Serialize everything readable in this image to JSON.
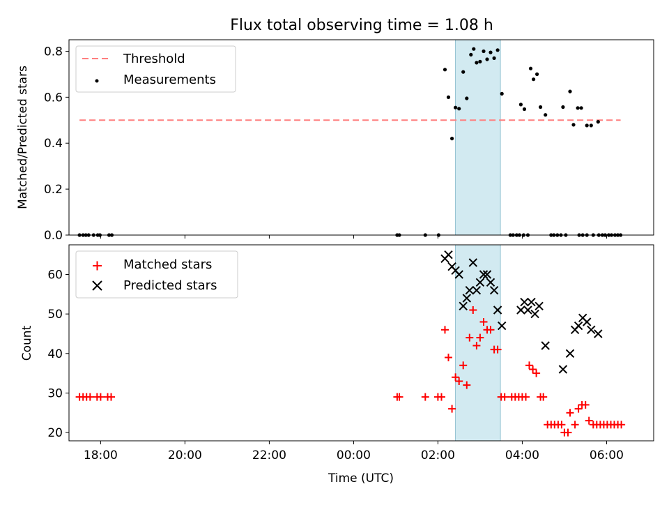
{
  "title": "Flux total observing time = 1.08 h",
  "colors": {
    "threshold": "#ff7f7f",
    "measurement": "#000000",
    "matched": "#ff0000",
    "predicted": "#000000",
    "span": "#add8e6"
  },
  "chart_data": [
    {
      "type": "scatter",
      "panel": "top",
      "ylabel": "Matched/Predicted stars",
      "xlabel": "",
      "xlim": [
        "17:15",
        "07:07"
      ],
      "ylim": [
        0,
        0.85
      ],
      "yticks": [
        "0.0",
        "0.2",
        "0.4",
        "0.6",
        "0.8"
      ],
      "ytick_values": [
        0,
        0.2,
        0.4,
        0.6,
        0.8
      ],
      "legend_position": "upper-left",
      "legend": [
        "Threshold",
        "Measurements"
      ],
      "highlight_span": [
        "02:25",
        "03:29"
      ],
      "series": [
        {
          "name": "Threshold",
          "style": "dashed-line",
          "x": [
            "17:30",
            "06:20"
          ],
          "y": [
            0.5,
            0.5
          ]
        },
        {
          "name": "Measurements",
          "style": "dots",
          "points": [
            [
              "17:30",
              0
            ],
            [
              "17:35",
              0
            ],
            [
              "17:39",
              0
            ],
            [
              "17:43",
              0
            ],
            [
              "17:50",
              0
            ],
            [
              "17:56",
              0
            ],
            [
              "17:59",
              0
            ],
            [
              "18:12",
              0
            ],
            [
              "18:16",
              0
            ],
            [
              "01:02",
              0
            ],
            [
              "01:05",
              0
            ],
            [
              "01:42",
              0
            ],
            [
              "02:01",
              0
            ],
            [
              "02:10",
              0.72
            ],
            [
              "02:15",
              0.6
            ],
            [
              "02:20",
              0.42
            ],
            [
              "02:25",
              0.555
            ],
            [
              "02:30",
              0.55
            ],
            [
              "02:36",
              0.71
            ],
            [
              "02:41",
              0.595
            ],
            [
              "02:47",
              0.785
            ],
            [
              "02:51",
              0.81
            ],
            [
              "02:55",
              0.75
            ],
            [
              "03:00",
              0.755
            ],
            [
              "03:05",
              0.8
            ],
            [
              "03:10",
              0.765
            ],
            [
              "03:15",
              0.795
            ],
            [
              "03:20",
              0.77
            ],
            [
              "03:25",
              0.805
            ],
            [
              "03:31",
              0.615
            ],
            [
              "03:43",
              0
            ],
            [
              "03:47",
              0
            ],
            [
              "03:52",
              0
            ],
            [
              "03:56",
              0
            ],
            [
              "03:58",
              0.568
            ],
            [
              "04:02",
              0
            ],
            [
              "04:03",
              0.548
            ],
            [
              "04:08",
              0
            ],
            [
              "04:12",
              0.725
            ],
            [
              "04:16",
              0.678
            ],
            [
              "04:21",
              0.7
            ],
            [
              "04:26",
              0.557
            ],
            [
              "04:33",
              0.523
            ],
            [
              "04:41",
              0
            ],
            [
              "04:45",
              0
            ],
            [
              "04:50",
              0
            ],
            [
              "04:55",
              0
            ],
            [
              "04:58",
              0.557
            ],
            [
              "05:02",
              0
            ],
            [
              "05:08",
              0.625
            ],
            [
              "05:13",
              0.48
            ],
            [
              "05:19",
              0.553
            ],
            [
              "05:24",
              0.553
            ],
            [
              "05:32",
              0.477
            ],
            [
              "05:38",
              0.477
            ],
            [
              "05:48",
              0.493
            ],
            [
              "05:21",
              0
            ],
            [
              "05:26",
              0
            ],
            [
              "05:32",
              0
            ],
            [
              "05:41",
              0
            ],
            [
              "05:49",
              0
            ],
            [
              "05:54",
              0
            ],
            [
              "05:58",
              0
            ],
            [
              "06:03",
              0
            ],
            [
              "06:07",
              0
            ],
            [
              "06:12",
              0
            ],
            [
              "06:16",
              0
            ],
            [
              "06:20",
              0
            ]
          ]
        }
      ]
    },
    {
      "type": "scatter",
      "panel": "bottom",
      "ylabel": "Count",
      "xlabel": "Time (UTC)",
      "xlim": [
        "17:15",
        "07:07"
      ],
      "ylim": [
        17.9,
        67.5
      ],
      "yticks": [
        "20",
        "30",
        "40",
        "50",
        "60"
      ],
      "ytick_values": [
        20,
        30,
        40,
        50,
        60
      ],
      "xticks": [
        "18:00",
        "20:00",
        "22:00",
        "00:00",
        "02:00",
        "04:00",
        "06:00"
      ],
      "legend_position": "upper-left",
      "legend": [
        "Matched stars",
        "Predicted stars"
      ],
      "highlight_span": [
        "02:25",
        "03:29"
      ],
      "series": [
        {
          "name": "Matched stars",
          "marker": "plus",
          "points": [
            [
              "17:30",
              29
            ],
            [
              "17:35",
              29
            ],
            [
              "17:40",
              29
            ],
            [
              "17:45",
              29
            ],
            [
              "17:55",
              29
            ],
            [
              "18:00",
              29
            ],
            [
              "18:10",
              29
            ],
            [
              "18:15",
              29
            ],
            [
              "01:02",
              29
            ],
            [
              "01:05",
              29
            ],
            [
              "01:42",
              29
            ],
            [
              "02:00",
              29
            ],
            [
              "02:05",
              29
            ],
            [
              "02:10",
              46
            ],
            [
              "02:15",
              39
            ],
            [
              "02:20",
              26
            ],
            [
              "02:25",
              34
            ],
            [
              "02:30",
              33
            ],
            [
              "02:36",
              37
            ],
            [
              "02:41",
              32
            ],
            [
              "02:45",
              44
            ],
            [
              "02:50",
              51
            ],
            [
              "02:55",
              42
            ],
            [
              "03:00",
              44
            ],
            [
              "03:05",
              48
            ],
            [
              "03:10",
              46
            ],
            [
              "03:15",
              46
            ],
            [
              "03:20",
              41
            ],
            [
              "03:25",
              41
            ],
            [
              "03:30",
              29
            ],
            [
              "03:35",
              29
            ],
            [
              "03:45",
              29
            ],
            [
              "03:50",
              29
            ],
            [
              "03:55",
              29
            ],
            [
              "04:00",
              29
            ],
            [
              "04:05",
              29
            ],
            [
              "04:10",
              37
            ],
            [
              "04:15",
              36
            ],
            [
              "04:20",
              35
            ],
            [
              "04:26",
              29
            ],
            [
              "04:30",
              29
            ],
            [
              "04:36",
              22
            ],
            [
              "04:41",
              22
            ],
            [
              "04:46",
              22
            ],
            [
              "04:51",
              22
            ],
            [
              "04:56",
              22
            ],
            [
              "05:00",
              20
            ],
            [
              "05:05",
              20
            ],
            [
              "05:08",
              25
            ],
            [
              "05:15",
              22
            ],
            [
              "05:20",
              26
            ],
            [
              "05:25",
              27
            ],
            [
              "05:30",
              27
            ],
            [
              "05:35",
              23
            ],
            [
              "05:41",
              22
            ],
            [
              "05:46",
              22
            ],
            [
              "05:51",
              22
            ],
            [
              "05:56",
              22
            ],
            [
              "06:01",
              22
            ],
            [
              "06:06",
              22
            ],
            [
              "06:11",
              22
            ],
            [
              "06:16",
              22
            ],
            [
              "06:21",
              22
            ]
          ]
        },
        {
          "name": "Predicted stars",
          "marker": "x",
          "points": [
            [
              "02:10",
              64
            ],
            [
              "02:15",
              65
            ],
            [
              "02:20",
              62
            ],
            [
              "02:25",
              61
            ],
            [
              "02:30",
              60
            ],
            [
              "02:36",
              52
            ],
            [
              "02:41",
              54
            ],
            [
              "02:45",
              56
            ],
            [
              "02:50",
              63
            ],
            [
              "02:55",
              56
            ],
            [
              "03:00",
              58
            ],
            [
              "03:05",
              60
            ],
            [
              "03:10",
              60
            ],
            [
              "03:15",
              58
            ],
            [
              "03:20",
              56
            ],
            [
              "03:25",
              51
            ],
            [
              "03:31",
              47
            ],
            [
              "03:58",
              51
            ],
            [
              "04:03",
              53
            ],
            [
              "04:08",
              51
            ],
            [
              "04:13",
              53
            ],
            [
              "04:18",
              50
            ],
            [
              "04:24",
              52
            ],
            [
              "04:33",
              42
            ],
            [
              "04:58",
              36
            ],
            [
              "05:08",
              40
            ],
            [
              "05:15",
              46
            ],
            [
              "05:20",
              47
            ],
            [
              "05:26",
              49
            ],
            [
              "05:32",
              48
            ],
            [
              "05:38",
              46
            ],
            [
              "05:48",
              45
            ]
          ]
        }
      ]
    }
  ]
}
